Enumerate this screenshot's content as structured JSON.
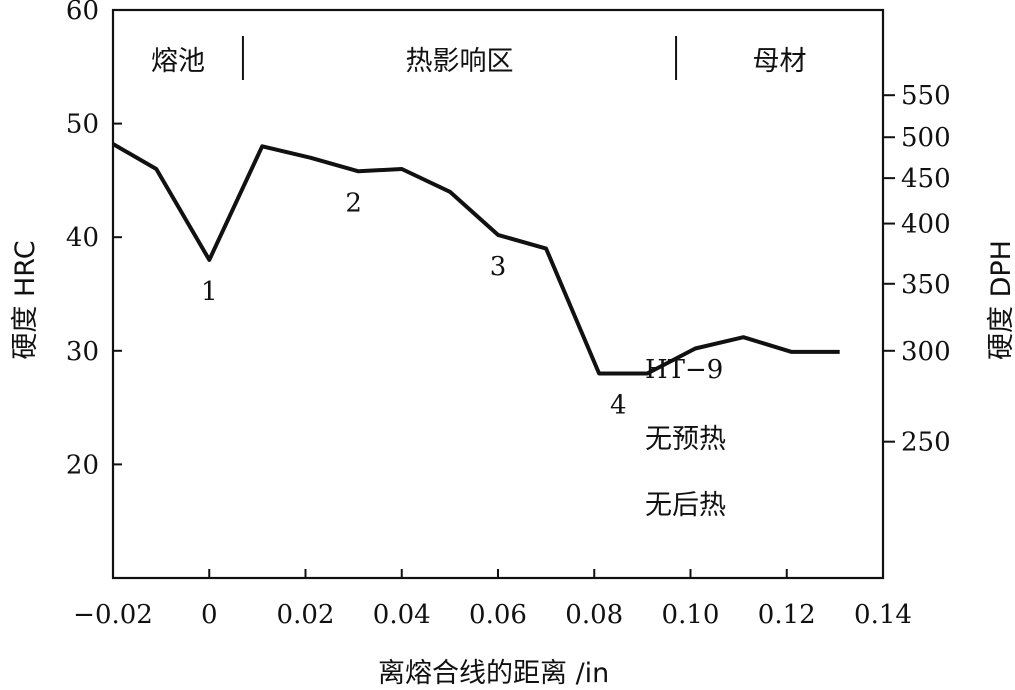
{
  "chart_data": {
    "type": "line",
    "title": "",
    "xlabel": "离熔合线的距离 /in",
    "ylabel": "硬度 HRC",
    "ylabel_right": "硬度 DPH",
    "xlim": [
      -0.02,
      0.14
    ],
    "ylim": [
      10,
      60
    ],
    "x_ticks": [
      -0.02,
      0,
      0.02,
      0.04,
      0.06,
      0.08,
      0.1,
      0.12,
      0.14
    ],
    "x_tick_labels": [
      "−0.02",
      "0",
      "0.02",
      "0.04",
      "0.06",
      "0.08",
      "0.10",
      "0.12",
      "0.14"
    ],
    "y_ticks": [
      20,
      30,
      40,
      50,
      60
    ],
    "y_tick_labels": [
      "20",
      "30",
      "40",
      "50",
      "60"
    ],
    "y2_ticks": [
      {
        "label": "550",
        "hrc": 52.5
      },
      {
        "label": "500",
        "hrc": 48.8
      },
      {
        "label": "450",
        "hrc": 45.2
      },
      {
        "label": "400",
        "hrc": 41.2
      },
      {
        "label": "350",
        "hrc": 35.9
      },
      {
        "label": "300",
        "hrc": 30.0
      },
      {
        "label": "250",
        "hrc": 22.0
      }
    ],
    "series": [
      {
        "x": [
          -0.02,
          -0.011,
          0,
          0.011,
          0.021,
          0.031,
          0.04,
          0.05,
          0.06,
          0.07,
          0.081,
          0.091,
          0.101,
          0.111,
          0.121,
          0.131
        ],
        "y": [
          48.2,
          46.0,
          38.0,
          48.0,
          47.0,
          45.8,
          46.0,
          44.0,
          40.2,
          39.0,
          28.0,
          28.0,
          30.2,
          31.2,
          29.9,
          29.9
        ]
      }
    ],
    "point_labels": [
      {
        "text": "1",
        "x": 0.0,
        "y": 38.0
      },
      {
        "text": "2",
        "x": 0.03,
        "y": 45.8
      },
      {
        "text": "3",
        "x": 0.06,
        "y": 40.2
      },
      {
        "text": "4",
        "x": 0.085,
        "y": 28.0
      }
    ],
    "regions": [
      {
        "text": "熔池"
      },
      {
        "text": "热影响区"
      },
      {
        "text": "母材"
      }
    ],
    "region_dividers_x": [
      0.007,
      0.097
    ],
    "annotations": [
      "HT−9",
      "无预热",
      "无后热"
    ],
    "grid": false
  }
}
